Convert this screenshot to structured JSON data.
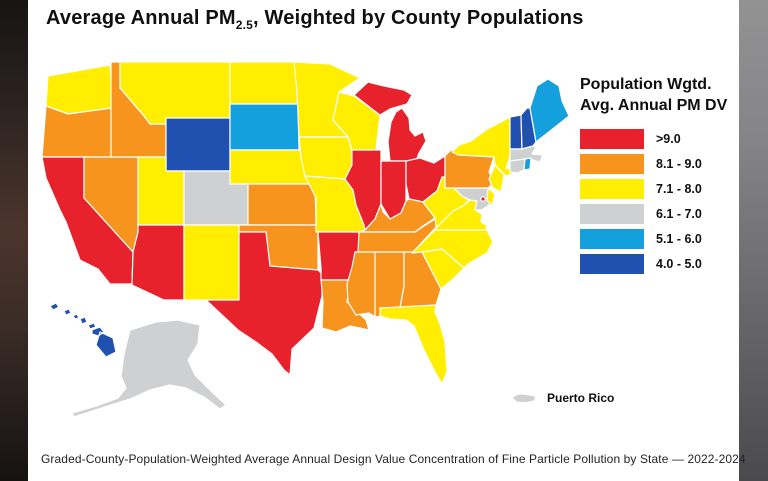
{
  "title": {
    "prefix": "Average Annual ",
    "pm": "PM",
    "pm_sub": "2.5",
    "suffix": ", Weighted by County Populations"
  },
  "legend": {
    "title_line1": "Population Wgtd.",
    "title_line2": "Avg. Annual PM DV",
    "items": [
      {
        "label": ">9.0",
        "color": "#e8222c"
      },
      {
        "label": "8.1 - 9.0",
        "color": "#f7941e"
      },
      {
        "label": "7.1 - 8.0",
        "color": "#ffee00"
      },
      {
        "label": "6.1 - 7.0",
        "color": "#cfd0d2"
      },
      {
        "label": "5.1 - 6.0",
        "color": "#14a0dc"
      },
      {
        "label": "4.0 - 5.0",
        "color": "#2151b0"
      }
    ]
  },
  "map": {
    "puerto_rico_label": "Puerto Rico"
  },
  "caption": "Graded-County-Population-Weighted Average Annual Design Value Concentration of Fine Particle Pollution by State — 2022-2024",
  "chart_data": {
    "type": "heatmap",
    "subtype": "us-state-choropleth",
    "title": "Average Annual PM2.5, Weighted by County Populations",
    "legend_title": "Population Wgtd. Avg. Annual PM DV",
    "legend_position": "right",
    "categories": [
      ">9.0",
      "8.1 - 9.0",
      "7.1 - 8.0",
      "6.1 - 7.0",
      "5.1 - 6.0",
      "4.0 - 5.0"
    ],
    "caption": "Graded-County-Population-Weighted Average Annual Design Value Concentration of Fine Particle Pollution by State — 2022-2024",
    "state_categories": {
      "WA": "7.1 - 8.0",
      "OR": "8.1 - 9.0",
      "CA": ">9.0",
      "ID": "8.1 - 9.0",
      "NV": "8.1 - 9.0",
      "MT": "7.1 - 8.0",
      "WY": "4.0 - 5.0",
      "UT": "7.1 - 8.0",
      "CO": "6.1 - 7.0",
      "AZ": ">9.0",
      "NM": "7.1 - 8.0",
      "ND": "7.1 - 8.0",
      "SD": "5.1 - 6.0",
      "NE": "7.1 - 8.0",
      "KS": "8.1 - 9.0",
      "OK": "8.1 - 9.0",
      "TX": ">9.0",
      "MN": "7.1 - 8.0",
      "IA": "7.1 - 8.0",
      "MO": "7.1 - 8.0",
      "AR": ">9.0",
      "LA": "8.1 - 9.0",
      "WI": "7.1 - 8.0",
      "IL": ">9.0",
      "MI": ">9.0",
      "IN": ">9.0",
      "OH": ">9.0",
      "KY": "8.1 - 9.0",
      "TN": "8.1 - 9.0",
      "MS": "8.1 - 9.0",
      "AL": "8.1 - 9.0",
      "GA": "8.1 - 9.0",
      "FL": "7.1 - 8.0",
      "SC": "7.1 - 8.0",
      "NC": "7.1 - 8.0",
      "VA": "7.1 - 8.0",
      "WV": "7.1 - 8.0",
      "MD": "6.1 - 7.0",
      "DE": "7.1 - 8.0",
      "PA": "8.1 - 9.0",
      "NJ": "7.1 - 8.0",
      "NY": "7.1 - 8.0",
      "CT": "6.1 - 7.0",
      "RI": "5.1 - 6.0",
      "MA": "6.1 - 7.0",
      "VT": "4.0 - 5.0",
      "NH": "4.0 - 5.0",
      "ME": "5.1 - 6.0",
      "AK": "6.1 - 7.0",
      "HI": "4.0 - 5.0",
      "DC": ">9.0",
      "PR": "6.1 - 7.0"
    }
  }
}
